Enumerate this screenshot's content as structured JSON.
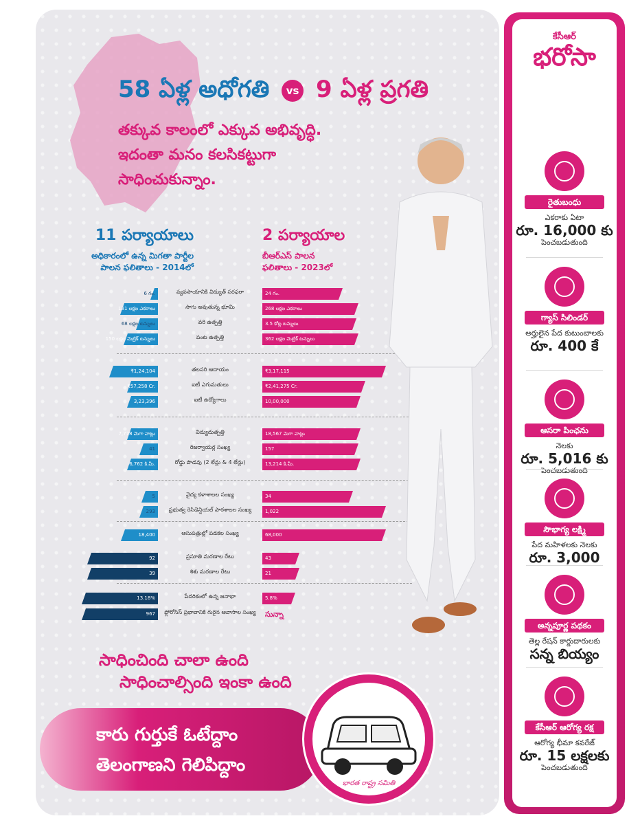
{
  "header": {
    "title_part1": "58 ఏళ్ల అధోగతి",
    "vs": "vs",
    "title_part2": "9 ఏళ్ల ప్రగతి",
    "tagline_1": "తక్కువ కాలంలో ఎక్కువ అభివృద్ధి.",
    "tagline_2": "ఇదంతా మనం కలసికట్టుగా",
    "tagline_3": "సాధించుకున్నాం."
  },
  "columns": {
    "left_title": "11 పర్యాయాలు",
    "left_sub_1": "అధికారంలో ఉన్న మిగతా పార్టీల",
    "left_sub_2": "పాలన ఫలితాలు - 2014లో",
    "right_title": "2 పర్యాయాల",
    "right_sub_1": "బీఆర్ఎస్ పాలన",
    "right_sub_2": "ఫలితాలు - 2023లో"
  },
  "comparisons": [
    {
      "label": "వ్యవసాయానికి విద్యుత్ సరఫరా",
      "before": "6 గం.",
      "after": "24 గం.",
      "before_frac": 0.09,
      "after_frac": 0.78
    },
    {
      "label": "సాగు అవుతున్న భూమి",
      "before": "131 లక్షల ఎకరాలు",
      "after": "268 లక్షల ఎకరాలు",
      "before_frac": 0.47,
      "after_frac": 0.93
    },
    {
      "label": "వరి ఉత్పత్తి",
      "before": "68 లక్షల టన్నులు",
      "after": "3.5 కోట్ల టన్నులు",
      "before_frac": 0.27,
      "after_frac": 0.91
    },
    {
      "label": "పంట ఉత్పత్తి",
      "before": "150 లక్షల మెట్రిక్ టన్నులు",
      "after": "362 లక్షల మెట్రిక్ టన్నులు",
      "before_frac": 0.42,
      "after_frac": 0.93
    },
    {
      "label": "తలసరి ఆదాయం",
      "before": "₹1,24,104",
      "after": "₹3,17,115",
      "before_frac": 0.6,
      "after_frac": 1.2
    },
    {
      "label": "ఐటీ ఎగుమతులు",
      "before": "₹57,258 Cr.",
      "after": "₹2,41,275 Cr.",
      "before_frac": 0.38,
      "after_frac": 1.0
    },
    {
      "label": "ఐటీ ఉద్యోగాలు",
      "before": "3,23,396",
      "after": "10,00,000",
      "before_frac": 0.38,
      "after_frac": 0.95
    },
    {
      "label": "విద్యుదుత్పత్తి",
      "before": "7,778 మెగా వాట్లు",
      "after": "18,567 మెగా వాట్లు",
      "before_frac": 0.38,
      "after_frac": 0.95
    },
    {
      "label": "రిజర్వాయర్ల సంఖ్య",
      "before": "41",
      "after": "157",
      "before_frac": 0.23,
      "after_frac": 0.93
    },
    {
      "label": "రోడ్డు పొడవు (2 లేన్లు & 4 లేన్లు)",
      "before": "6,762 కి.మీ.",
      "after": "13,214 కి.మీ.",
      "before_frac": 0.38,
      "after_frac": 0.95
    },
    {
      "label": "వైద్య కళాశాలల సంఖ్య",
      "before": "5",
      "after": "34",
      "before_frac": 0.2,
      "after_frac": 0.88
    },
    {
      "label": "ప్రభుత్వ రెసిడెన్షియల్ పాఠశాలల సంఖ్య",
      "before": "293",
      "after": "1,022",
      "before_frac": 0.23,
      "after_frac": 1.2
    },
    {
      "label": "ఆసుపత్రుల్లో పడకల సంఖ్య",
      "before": "18,400",
      "after": "68,000",
      "before_frac": 0.46,
      "after_frac": 1.2
    },
    {
      "label": "ప్రసూతి మరణాల రేటు",
      "before": "92",
      "after": "43",
      "before_frac": 0.87,
      "after_frac": 0.36
    },
    {
      "label": "శిశు మరణాల రేటు",
      "before": "39",
      "after": "21",
      "before_frac": 0.87,
      "after_frac": 0.36
    },
    {
      "label": "పేదరికంలో ఉన్న జనాభా",
      "before": "13.18%",
      "after": "5.8%",
      "before_frac": 0.94,
      "after_frac": 0.32
    },
    {
      "label": "ఫ్లోరోసిస్ ప్రభావానికి గురైన ఆవాసాల సంఖ్య",
      "before": "967",
      "after": "సున్నా",
      "before_frac": 0.94,
      "after_frac": 0
    }
  ],
  "slogan": {
    "line1": "సాధించింది చాలా ఉంది",
    "line2": "సాధించాల్సింది ఇంకా ఉంది"
  },
  "vote": {
    "line1": "కారు గుర్తుకే ఓటేద్దాం",
    "line2": "తెలంగాణని గెలిపిద్దాం"
  },
  "party_name": "భారత రాష్ట్ర సమితి",
  "sidebar": {
    "brand_small": "కేసీఆర్",
    "brand_big": "భరోసా",
    "schemes": [
      {
        "icon": "farmer-icon",
        "name": "రైతుబంధు",
        "desc_1": "ఎకరాకు ఏటా",
        "big": "రూ. 16,000 కు",
        "desc_2": "పెంచబడుతుంది"
      },
      {
        "icon": "gas-cylinder-icon",
        "name": "గ్యాస్ సిలిండర్",
        "desc_1": "అర్హులైన పేద కుటుంబాలకు",
        "big": "రూ. 400 కే",
        "desc_2": ""
      },
      {
        "icon": "pension-hands-icon",
        "name": "ఆసరా పింఛను",
        "desc_1": "నెలకు",
        "big": "రూ. 5,016 కు",
        "desc_2": "పెంచబడుతుంది"
      },
      {
        "icon": "woman-icon",
        "name": "సౌభాగ్య లక్ష్మి",
        "desc_1": "పేద మహిళలకు నెలకు",
        "big": "రూ. 3,000",
        "desc_2": ""
      },
      {
        "icon": "rice-bag-icon",
        "name": "అన్నపూర్ణ పథకం",
        "desc_1": "తెల్ల రేషన్ కార్డుదారులకు",
        "big": "సన్న బియ్యం",
        "desc_2": ""
      },
      {
        "icon": "health-family-icon",
        "name": "కేసీఆర్ ఆరోగ్య రక్ష",
        "desc_1": "ఆరోగ్య భీమా కవరేజ్",
        "big": "రూ. 15 లక్షలకు",
        "desc_2": "పెంచబడుతుంది"
      }
    ]
  },
  "colors": {
    "pink": "#d81f79",
    "blue": "#1f8ec9",
    "navy": "#123f67",
    "panel": "#e9e8ec"
  }
}
